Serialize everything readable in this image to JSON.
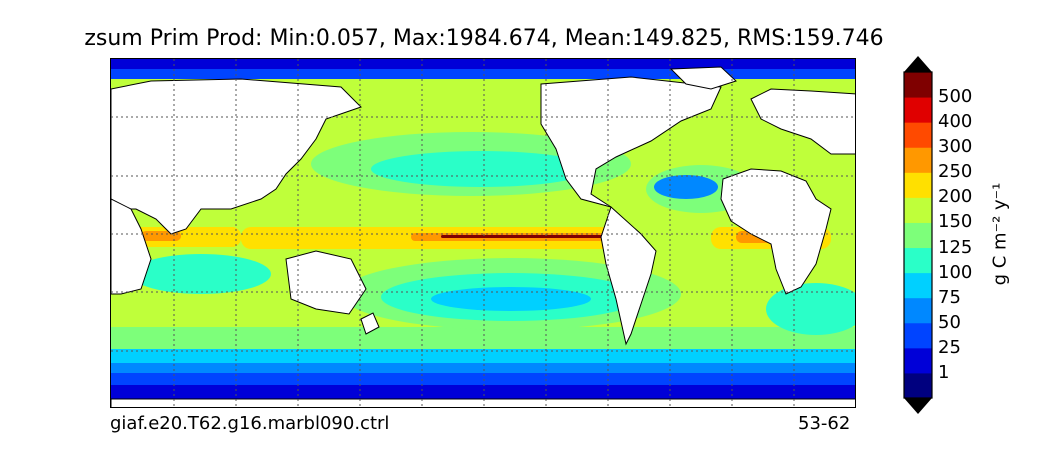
{
  "figure": {
    "title": "zsum Prim Prod: Min:0.057, Max:1984.674, Mean:149.825, RMS:159.746",
    "case_name": "giaf.e20.T62.g16.marbl090.ctrl",
    "years": "53-62"
  },
  "map": {
    "projection": "cylindrical global, Pacific-centered",
    "gridlines": "dotted",
    "land_color": "#ffffff",
    "coastline_color": "#000000"
  },
  "colorbar": {
    "unit": "g C m⁻² y⁻¹",
    "extend": "both",
    "tick_labels": [
      "1",
      "25",
      "50",
      "75",
      "100",
      "125",
      "150",
      "200",
      "250",
      "300",
      "400",
      "500"
    ],
    "levels": [
      1,
      25,
      50,
      75,
      100,
      125,
      150,
      200,
      250,
      300,
      400,
      500
    ],
    "colors": [
      "#00007f",
      "#0000d8",
      "#0044ff",
      "#0088ff",
      "#00d0ff",
      "#2affc8",
      "#7dff7a",
      "#bfff3a",
      "#ffe000",
      "#ff9800",
      "#ff4a00",
      "#e00000",
      "#7f0000"
    ]
  }
}
